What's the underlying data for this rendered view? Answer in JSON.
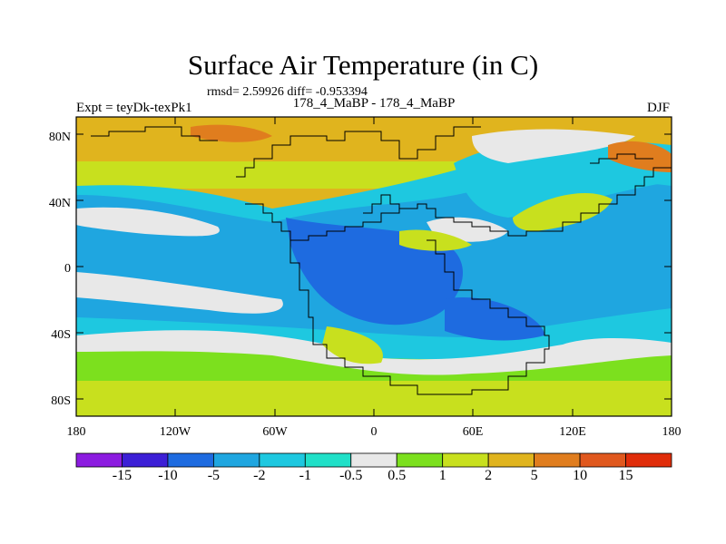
{
  "header": {
    "title": "Surface Air Temperature (in C)",
    "stats": "rmsd= 2.59926 diff= -0.953394",
    "experiment": "Expt = teyDk-texPk1",
    "comparison": "178_4_MaBP - 178_4_MaBP",
    "season": "DJF"
  },
  "axes": {
    "x_ticks": [
      "180",
      "120W",
      "60W",
      "0",
      "60E",
      "120E",
      "180"
    ],
    "y_ticks": [
      "80N",
      "40N",
      "0",
      "40S",
      "80S"
    ]
  },
  "colorbar": {
    "colors": [
      "#8c1ce0",
      "#3c1fd6",
      "#1e6be0",
      "#1fa6e0",
      "#1ec8e0",
      "#20e0c8",
      "#e8e8e8",
      "#7ce01e",
      "#c8e01e",
      "#e0b41e",
      "#e07d1e",
      "#e0581e",
      "#e02d0a"
    ],
    "labels": [
      "-15",
      "-10",
      "-5",
      "-2",
      "-1",
      "-0.5",
      "0.5",
      "1",
      "2",
      "5",
      "10",
      "15"
    ]
  }
}
